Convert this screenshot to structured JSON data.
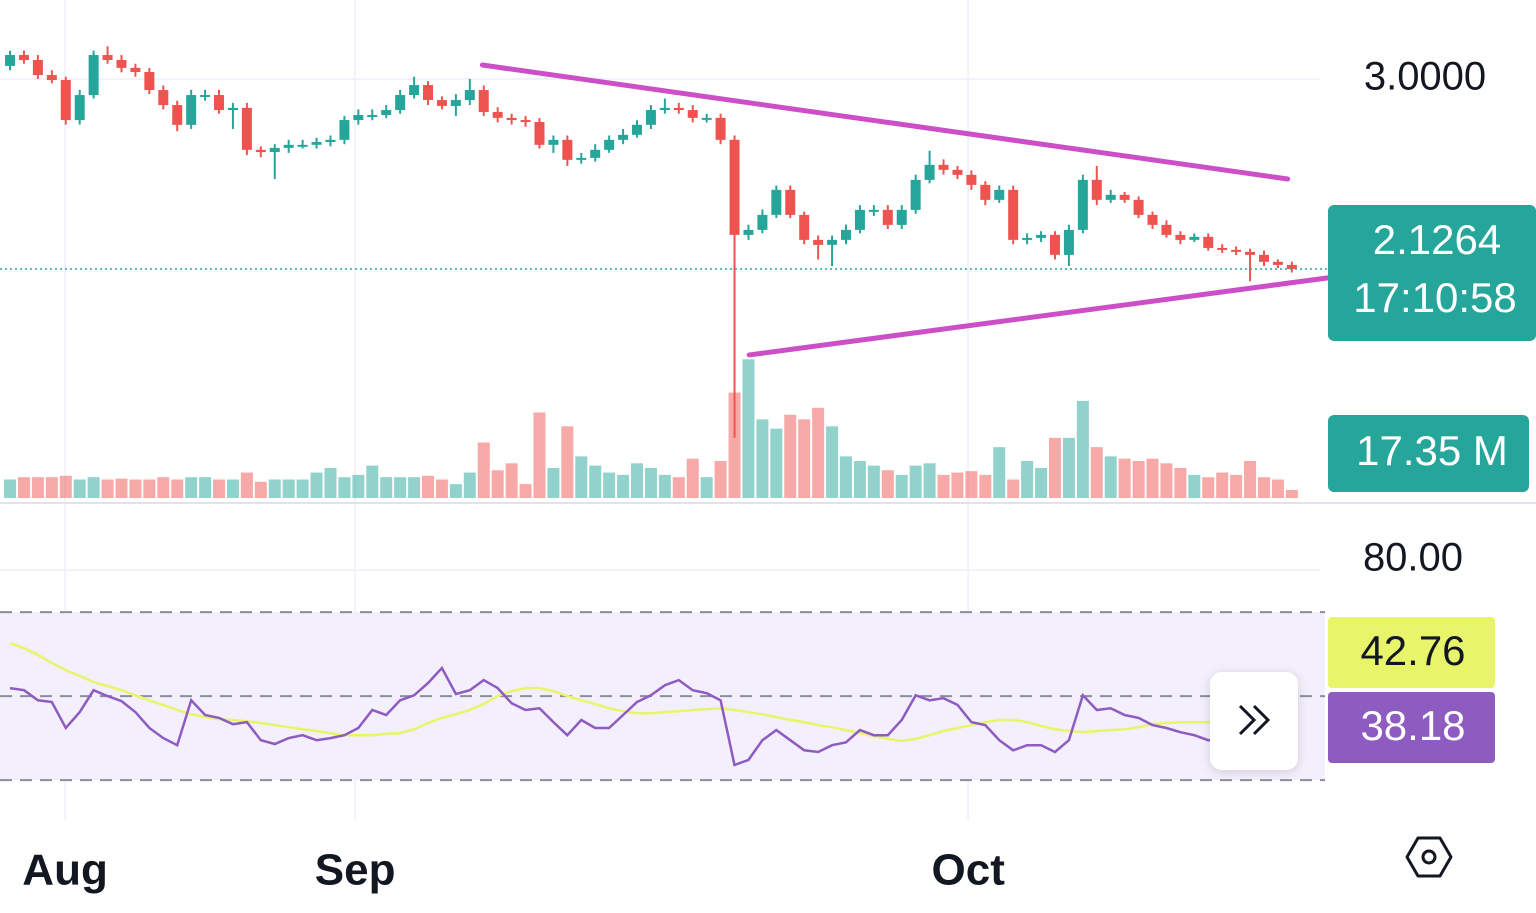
{
  "chart_data": {
    "type": "candlestick",
    "xlim": [
      -0.72,
      95.6
    ],
    "xticks": [
      {
        "value": 3.95,
        "label": "Aug"
      },
      {
        "value": 24.77,
        "label": "Sep"
      },
      {
        "value": 68.77,
        "label": "Oct"
      }
    ],
    "ylim": [
      1.064,
      3.363
    ],
    "yticks": [
      {
        "value": 3,
        "label": "3.0000"
      }
    ],
    "up_color": "#26a69a",
    "down_color": "#ef5350",
    "open": [
      3.06,
      3.11,
      3.087,
      3.018,
      2.995,
      2.811,
      2.926,
      3.11,
      3.087,
      3.051,
      3.032,
      2.949,
      2.88,
      2.789,
      2.926,
      2.926,
      2.857,
      2.867,
      2.674,
      2.664,
      2.683,
      2.697,
      2.697,
      2.71,
      2.72,
      2.811,
      2.834,
      2.834,
      2.857,
      2.926,
      2.972,
      2.903,
      2.876,
      2.903,
      2.949,
      2.848,
      2.821,
      2.811,
      2.802,
      2.697,
      2.72,
      2.628,
      2.637,
      2.674,
      2.72,
      2.743,
      2.789,
      2.857,
      2.867,
      2.857,
      2.821,
      2.821,
      2.72,
      2.283,
      2.306,
      2.375,
      2.49,
      2.375,
      2.26,
      2.237,
      2.26,
      2.306,
      2.398,
      2.398,
      2.329,
      2.398,
      2.536,
      2.605,
      2.582,
      2.559,
      2.513,
      2.444,
      2.49,
      2.26,
      2.269,
      2.283,
      2.191,
      2.306,
      2.536,
      2.444,
      2.467,
      2.444,
      2.375,
      2.329,
      2.283,
      2.26,
      2.274,
      2.223,
      2.214,
      2.205,
      2.191,
      2.159,
      2.145
    ],
    "high": [
      3.13,
      3.13,
      3.11,
      3.04,
      3.01,
      2.95,
      3.13,
      3.15,
      3.11,
      3.07,
      3.05,
      2.97,
      2.9,
      2.95,
      2.95,
      2.95,
      2.89,
      2.89,
      2.69,
      2.7,
      2.72,
      2.72,
      2.73,
      2.74,
      2.83,
      2.86,
      2.86,
      2.88,
      2.95,
      3.01,
      2.99,
      2.92,
      2.93,
      3.0,
      2.97,
      2.87,
      2.84,
      2.83,
      2.82,
      2.74,
      2.74,
      2.66,
      2.7,
      2.74,
      2.77,
      2.81,
      2.88,
      2.91,
      2.89,
      2.88,
      2.84,
      2.84,
      2.74,
      2.33,
      2.4,
      2.51,
      2.51,
      2.39,
      2.28,
      2.28,
      2.33,
      2.42,
      2.42,
      2.42,
      2.42,
      2.56,
      2.67,
      2.63,
      2.6,
      2.58,
      2.53,
      2.51,
      2.51,
      2.29,
      2.3,
      2.3,
      2.33,
      2.56,
      2.6,
      2.49,
      2.48,
      2.46,
      2.39,
      2.35,
      2.3,
      2.29,
      2.29,
      2.24,
      2.23,
      2.22,
      2.21,
      2.17,
      2.16
    ],
    "low": [
      3.04,
      3.07,
      3.0,
      2.98,
      2.79,
      2.79,
      2.91,
      3.07,
      3.03,
      3.01,
      2.93,
      2.86,
      2.76,
      2.77,
      2.9,
      2.84,
      2.77,
      2.65,
      2.64,
      2.54,
      2.66,
      2.68,
      2.68,
      2.69,
      2.7,
      2.79,
      2.81,
      2.82,
      2.84,
      2.91,
      2.88,
      2.86,
      2.83,
      2.88,
      2.83,
      2.8,
      2.79,
      2.78,
      2.68,
      2.66,
      2.6,
      2.61,
      2.62,
      2.66,
      2.7,
      2.73,
      2.77,
      2.84,
      2.84,
      2.8,
      2.8,
      2.7,
      1.35,
      2.26,
      2.29,
      2.36,
      2.36,
      2.24,
      2.17,
      2.14,
      2.24,
      2.29,
      2.37,
      2.31,
      2.31,
      2.38,
      2.52,
      2.56,
      2.54,
      2.49,
      2.42,
      2.43,
      2.24,
      2.24,
      2.25,
      2.17,
      2.14,
      2.29,
      2.42,
      2.43,
      2.43,
      2.36,
      2.31,
      2.27,
      2.24,
      2.25,
      2.21,
      2.2,
      2.19,
      2.07,
      2.14,
      2.13,
      2.11
    ],
    "close": [
      3.11,
      3.087,
      3.018,
      2.995,
      2.811,
      2.926,
      3.11,
      3.087,
      3.051,
      3.032,
      2.949,
      2.88,
      2.789,
      2.926,
      2.926,
      2.857,
      2.867,
      2.674,
      2.664,
      2.683,
      2.697,
      2.697,
      2.71,
      2.72,
      2.811,
      2.834,
      2.834,
      2.857,
      2.926,
      2.972,
      2.903,
      2.876,
      2.903,
      2.949,
      2.848,
      2.821,
      2.811,
      2.802,
      2.697,
      2.72,
      2.628,
      2.637,
      2.674,
      2.72,
      2.743,
      2.789,
      2.857,
      2.867,
      2.857,
      2.821,
      2.821,
      2.72,
      2.283,
      2.306,
      2.375,
      2.49,
      2.375,
      2.26,
      2.237,
      2.26,
      2.306,
      2.398,
      2.398,
      2.329,
      2.398,
      2.536,
      2.605,
      2.582,
      2.559,
      2.513,
      2.444,
      2.49,
      2.26,
      2.269,
      2.283,
      2.191,
      2.306,
      2.536,
      2.444,
      2.467,
      2.444,
      2.375,
      2.329,
      2.283,
      2.26,
      2.274,
      2.223,
      2.214,
      2.205,
      2.191,
      2.159,
      2.145,
      2.1264
    ],
    "countdown": "17:10:58",
    "trendline_color": "#cc4fc8",
    "trendlines": [
      {
        "from": [
          33.9,
          3.064
        ],
        "to": [
          91.7,
          2.54
        ]
      },
      {
        "from": [
          53.05,
          1.731
        ],
        "to": [
          95.6,
          2.094
        ]
      }
    ],
    "volume": {
      "ylim": [
        0,
        320
      ],
      "last_label": "17.35 M",
      "values": [
        40,
        45,
        45,
        45,
        48,
        40,
        45,
        40,
        42,
        40,
        40,
        45,
        40,
        45,
        45,
        40,
        40,
        55,
        35,
        40,
        40,
        40,
        55,
        65,
        45,
        50,
        70,
        45,
        45,
        45,
        48,
        40,
        30,
        55,
        120,
        60,
        75,
        30,
        185,
        65,
        155,
        90,
        70,
        55,
        50,
        75,
        65,
        50,
        45,
        85,
        45,
        80,
        228,
        300,
        170,
        150,
        180,
        170,
        195,
        155,
        90,
        80,
        70,
        60,
        50,
        70,
        75,
        50,
        55,
        58,
        50,
        110,
        40,
        80,
        65,
        130,
        130,
        210,
        110,
        90,
        85,
        80,
        85,
        75,
        65,
        50,
        45,
        55,
        50,
        80,
        45,
        40,
        17.35
      ]
    },
    "rsi": {
      "ylim": [
        20.5,
        95.5
      ],
      "yticks": [
        {
          "value": 80,
          "label": "80.00"
        }
      ],
      "bands": [
        70,
        50,
        30
      ],
      "band_fill": "#f3effc",
      "series": [
        {
          "color": "#8e5cc0",
          "values": [
            51.9,
            51.4,
            49.0,
            48.6,
            42.4,
            46.2,
            51.4,
            50.0,
            48.8,
            46.2,
            42.4,
            40.0,
            38.3,
            49.0,
            45.5,
            44.8,
            43.3,
            43.8,
            39.5,
            38.6,
            40.0,
            40.7,
            39.5,
            40.0,
            40.7,
            42.4,
            46.7,
            45.5,
            49.0,
            50.2,
            53.1,
            56.7,
            50.5,
            51.4,
            53.8,
            51.9,
            48.3,
            46.7,
            47.1,
            43.8,
            40.7,
            44.3,
            42.4,
            42.4,
            45.5,
            48.6,
            50.2,
            52.6,
            53.8,
            51.4,
            50.7,
            49.0,
            33.6,
            34.8,
            39.5,
            41.9,
            39.5,
            37.1,
            36.7,
            38.3,
            39.0,
            41.9,
            40.7,
            40.7,
            44.3,
            50.2,
            49.0,
            49.5,
            47.9,
            43.8,
            43.1,
            39.5,
            37.1,
            38.3,
            38.3,
            36.7,
            39.5,
            50.2,
            46.7,
            47.1,
            45.5,
            44.8,
            43.1,
            42.4,
            41.4,
            40.7,
            39.5,
            39.5,
            39.0,
            38.3,
            37.6,
            37.1,
            38.18
          ]
        },
        {
          "color": "#e8f56a",
          "values": [
            62.6,
            61.4,
            59.8,
            57.9,
            56.2,
            54.8,
            53.3,
            52.4,
            51.4,
            50.2,
            49.0,
            47.9,
            46.7,
            45.7,
            45.0,
            44.5,
            44.3,
            44.0,
            43.6,
            43.1,
            42.6,
            42.1,
            41.7,
            41.2,
            40.7,
            40.7,
            40.7,
            41.0,
            41.2,
            42.1,
            43.6,
            44.8,
            45.7,
            46.7,
            48.1,
            50.0,
            51.2,
            51.9,
            51.9,
            51.2,
            50.0,
            49.0,
            48.1,
            47.1,
            46.4,
            45.9,
            45.9,
            46.2,
            46.4,
            46.7,
            46.9,
            47.1,
            46.7,
            46.2,
            45.7,
            45.0,
            44.3,
            43.8,
            43.1,
            42.6,
            41.9,
            41.2,
            40.5,
            39.8,
            39.3,
            39.8,
            40.7,
            41.7,
            42.4,
            43.1,
            43.8,
            44.3,
            44.3,
            43.8,
            42.9,
            42.1,
            41.7,
            41.4,
            41.7,
            41.9,
            42.1,
            42.6,
            43.3,
            43.6,
            43.8,
            43.8,
            43.8,
            43.6,
            43.3,
            43.1,
            42.9,
            42.9,
            42.76
          ]
        }
      ]
    }
  }
}
